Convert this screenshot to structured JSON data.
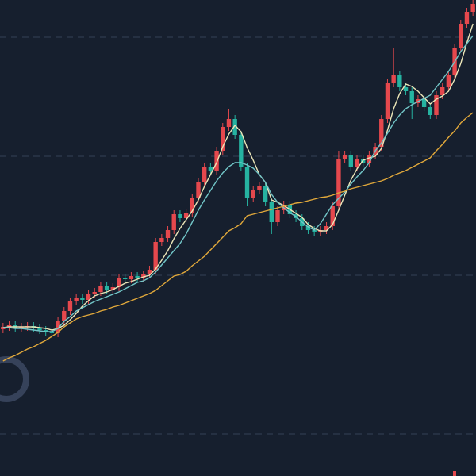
{
  "chart_data": {
    "type": "candlestick",
    "up_color": "#e5484d",
    "down_color": "#26b3a1",
    "ylim": [
      0,
      600
    ],
    "yticks": [
      53,
      253,
      403,
      553
    ],
    "grid": true,
    "open": [
      185,
      188,
      190,
      186,
      188,
      189,
      187,
      184,
      182,
      180,
      195,
      208,
      220,
      225,
      222,
      230,
      232,
      240,
      235,
      238,
      250,
      248,
      252,
      250,
      254,
      260,
      295,
      300,
      310,
      330,
      325,
      332,
      350,
      370,
      390,
      385,
      410,
      440,
      450,
      430,
      390,
      350,
      360,
      365,
      345,
      320,
      335,
      342,
      330,
      325,
      315,
      310,
      308,
      310,
      315,
      340,
      400,
      405,
      390,
      400,
      395,
      405,
      415,
      450,
      495,
      505,
      490,
      485,
      470,
      475,
      465,
      455,
      480,
      490,
      505,
      540,
      570,
      585
    ],
    "high": [
      193,
      195,
      195,
      193,
      194,
      194,
      192,
      189,
      187,
      200,
      213,
      225,
      230,
      230,
      235,
      237,
      245,
      245,
      243,
      255,
      255,
      257,
      257,
      259,
      265,
      300,
      305,
      315,
      335,
      335,
      337,
      355,
      375,
      395,
      395,
      415,
      445,
      462,
      455,
      435,
      395,
      365,
      370,
      370,
      350,
      340,
      347,
      347,
      335,
      330,
      320,
      315,
      315,
      320,
      345,
      410,
      410,
      410,
      405,
      405,
      410,
      420,
      455,
      500,
      540,
      510,
      495,
      490,
      480,
      480,
      470,
      485,
      495,
      510,
      545,
      575,
      590,
      600
    ],
    "low": [
      180,
      183,
      181,
      181,
      183,
      182,
      179,
      177,
      175,
      175,
      190,
      203,
      215,
      217,
      217,
      225,
      227,
      230,
      230,
      233,
      243,
      243,
      245,
      245,
      249,
      255,
      290,
      295,
      305,
      320,
      320,
      327,
      345,
      365,
      380,
      380,
      405,
      435,
      425,
      385,
      340,
      345,
      355,
      340,
      305,
      315,
      330,
      325,
      320,
      310,
      305,
      303,
      303,
      305,
      310,
      335,
      395,
      385,
      385,
      390,
      390,
      400,
      410,
      445,
      490,
      485,
      480,
      450,
      465,
      460,
      450,
      450,
      475,
      485,
      500,
      535,
      565,
      580
    ],
    "close": [
      188,
      190,
      186,
      188,
      189,
      187,
      184,
      182,
      180,
      195,
      208,
      220,
      225,
      222,
      230,
      232,
      240,
      235,
      238,
      250,
      248,
      252,
      250,
      254,
      260,
      295,
      300,
      310,
      330,
      325,
      332,
      350,
      370,
      390,
      385,
      410,
      440,
      450,
      430,
      390,
      350,
      360,
      365,
      345,
      320,
      335,
      342,
      330,
      325,
      315,
      310,
      308,
      310,
      315,
      340,
      400,
      405,
      390,
      400,
      395,
      405,
      415,
      450,
      495,
      505,
      490,
      485,
      470,
      475,
      465,
      455,
      480,
      490,
      505,
      540,
      570,
      585,
      595
    ],
    "lines": [
      {
        "color": "#ece6b8",
        "values": [
          187,
          188,
          188,
          188,
          188,
          188,
          187,
          186,
          184,
          186,
          190,
          197,
          205,
          214,
          221,
          227,
          230,
          232,
          235,
          239,
          243,
          245,
          248,
          251,
          253,
          261,
          272,
          284,
          299,
          312,
          323,
          334,
          348,
          365,
          380,
          395,
          415,
          431,
          442,
          434,
          414,
          398,
          380,
          370,
          348,
          345,
          341,
          336,
          331,
          326,
          317,
          312,
          309,
          309,
          317,
          335,
          354,
          373,
          387,
          398,
          401,
          403,
          413,
          436,
          463,
          482,
          494,
          491,
          485,
          477,
          469,
          475,
          479,
          485,
          500,
          520,
          546,
          570
        ]
      },
      {
        "color": "#72c6c8",
        "values": [
          187,
          187,
          186,
          186,
          185,
          184,
          183,
          182,
          182,
          186,
          195,
          201,
          208,
          212,
          216,
          220,
          223,
          226,
          229,
          232,
          236,
          240,
          244,
          246,
          250,
          257,
          266,
          275,
          284,
          293,
          305,
          320,
          335,
          348,
          360,
          372,
          382,
          390,
          395,
          395,
          392,
          388,
          380,
          370,
          355,
          345,
          338,
          332,
          327,
          320,
          314,
          310,
          318,
          330,
          342,
          350,
          358,
          368,
          377,
          385,
          395,
          410,
          420,
          432,
          445,
          455,
          463,
          468,
          472,
          476,
          480,
          490,
          500,
          510,
          522,
          535,
          545,
          555
        ]
      },
      {
        "color": "#e2a93b",
        "values": [
          145,
          149,
          152,
          156,
          160,
          163,
          167,
          171,
          176,
          181,
          188,
          193,
          198,
          201,
          203,
          205,
          208,
          210,
          213,
          215,
          218,
          221,
          224,
          227,
          230,
          234,
          240,
          246,
          252,
          254,
          258,
          265,
          271,
          277,
          285,
          293,
          301,
          309,
          313,
          318,
          328,
          330,
          332,
          334,
          336,
          338,
          340,
          342,
          344,
          345,
          347,
          349,
          351,
          352,
          354,
          357,
          359,
          362,
          364,
          366,
          368,
          370,
          372,
          375,
          379,
          382,
          385,
          389,
          393,
          397,
          401,
          410,
          418,
          427,
          435,
          445,
          452,
          458
        ]
      }
    ]
  }
}
